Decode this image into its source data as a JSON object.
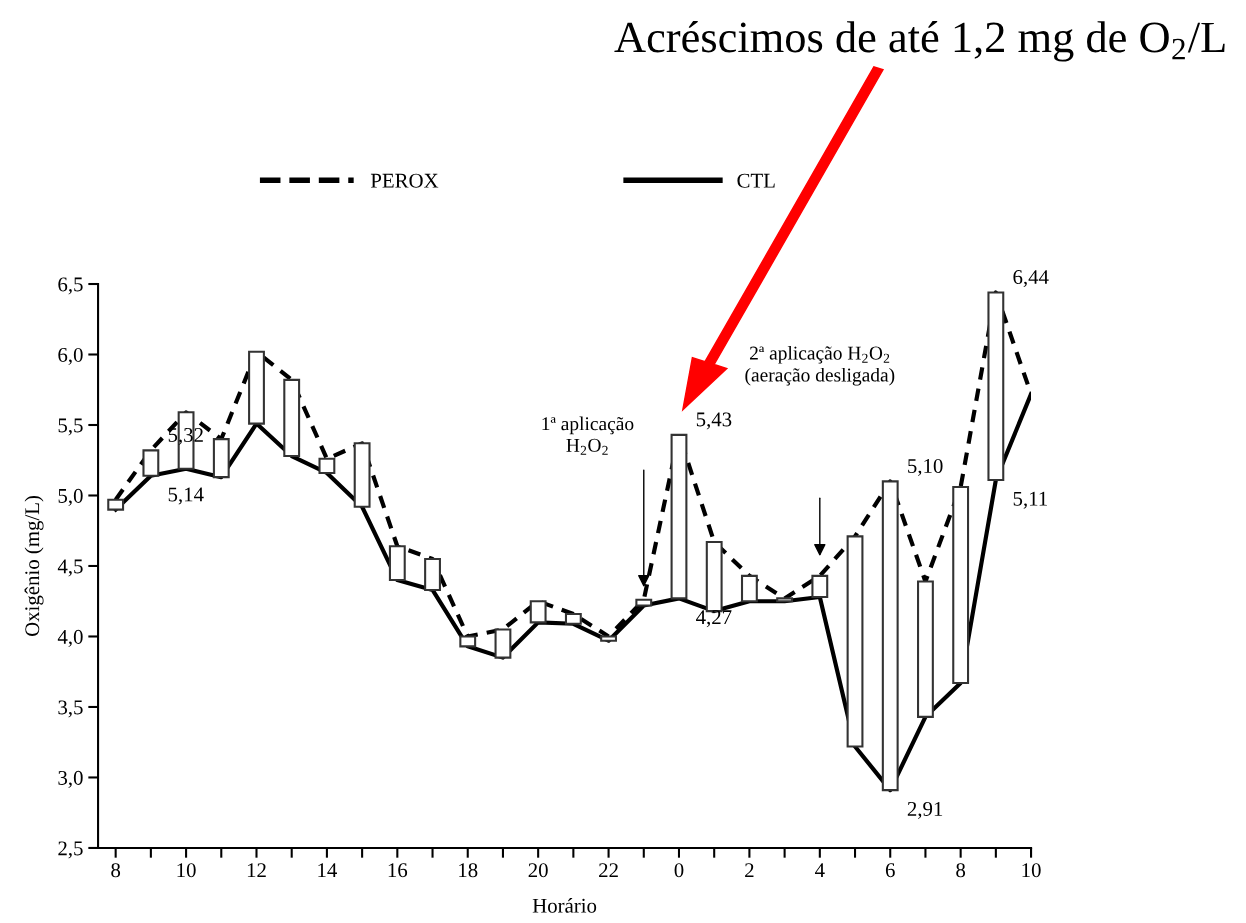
{
  "chart_data": {
    "type": "line",
    "title": "Acréscimos de até 1,2 mg de O$_{2}$/L",
    "xlabel": "Horário",
    "ylabel": "Oxigênio (mg/L)",
    "categories": [
      "8",
      null,
      "10",
      null,
      "12",
      null,
      "14",
      null,
      "16",
      null,
      "18",
      null,
      "20",
      null,
      "22",
      null,
      "0",
      null,
      "2",
      null,
      "4",
      null,
      "6",
      null,
      "8",
      null,
      "10"
    ],
    "series": [
      {
        "name": "PEROX",
        "color": "#000000",
        "line_style": "dashed",
        "values": [
          4.97,
          5.32,
          5.59,
          5.4,
          6.02,
          5.82,
          5.26,
          5.37,
          4.64,
          4.55,
          4.0,
          4.05,
          4.25,
          4.16,
          4.0,
          4.26,
          5.43,
          4.67,
          4.43,
          4.27,
          4.43,
          4.71,
          5.1,
          4.39,
          5.06,
          6.44,
          5.72
        ],
        "value_labels": [
          null,
          "5,32",
          null,
          null,
          null,
          null,
          null,
          null,
          null,
          null,
          null,
          null,
          null,
          null,
          null,
          null,
          "5,43",
          null,
          null,
          null,
          null,
          null,
          "5,10",
          null,
          null,
          "6,44",
          null
        ]
      },
      {
        "name": "CTL",
        "color": "#000000",
        "line_style": "solid",
        "values": [
          4.9,
          5.14,
          5.19,
          5.13,
          5.51,
          5.28,
          5.16,
          4.92,
          4.4,
          4.33,
          3.93,
          3.85,
          4.1,
          4.09,
          3.97,
          4.22,
          4.27,
          4.18,
          4.25,
          4.25,
          4.28,
          3.22,
          2.91,
          3.43,
          3.67,
          5.11,
          5.72
        ],
        "value_labels": [
          null,
          "5,14",
          null,
          null,
          null,
          null,
          null,
          null,
          null,
          null,
          null,
          null,
          null,
          null,
          null,
          null,
          "4,27",
          null,
          null,
          null,
          null,
          null,
          "2,91",
          null,
          null,
          "5,11",
          null
        ]
      },
      {
        "type": "bar",
        "color": "#ffffff",
        "values": [
          0.07,
          0.18,
          0.4,
          0.27,
          0.51,
          0.54,
          0.1,
          0.45,
          0.24,
          0.22,
          0.07,
          0.2,
          0.15,
          0.07,
          0.03,
          0.04,
          1.16,
          0.49,
          0.18,
          0.02,
          0.15,
          1.49,
          2.19,
          0.96,
          1.39,
          1.33,
          null
        ],
        "base": [
          4.9,
          5.14,
          5.19,
          5.13,
          5.51,
          5.28,
          5.16,
          4.92,
          4.4,
          4.33,
          3.93,
          3.85,
          4.1,
          4.09,
          3.97,
          4.22,
          4.27,
          4.18,
          4.25,
          4.25,
          4.28,
          3.22,
          2.91,
          3.43,
          3.67,
          5.11,
          null
        ]
      }
    ],
    "ylim": [
      2.5,
      6.5
    ],
    "yticks": [
      {
        "value": 2.5,
        "label": "2,5"
      },
      {
        "value": 3.0,
        "label": "3,0"
      },
      {
        "value": 3.5,
        "label": "3,5"
      },
      {
        "value": 4.0,
        "label": "4,0"
      },
      {
        "value": 4.5,
        "label": "4,5"
      },
      {
        "value": 5.0,
        "label": "5,0"
      },
      {
        "value": 5.5,
        "label": "5,5"
      },
      {
        "value": 6.0,
        "label": "6,0"
      },
      {
        "value": 6.5,
        "label": "6,5"
      }
    ],
    "annotations": [
      "1ª aplicação\nH$_{2}$O$_{2}$",
      "2ª aplicação H$_{2}$O$_{2}$\n(aeração desligada)"
    ],
    "grid": false,
    "legend": "top",
    "marker": "none"
  }
}
